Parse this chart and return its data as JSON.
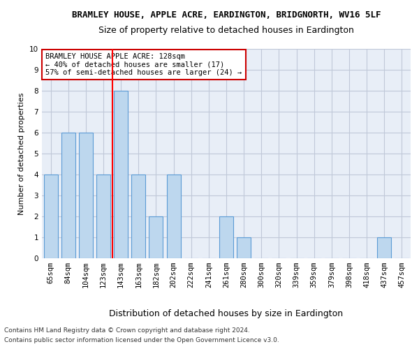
{
  "title": "BRAMLEY HOUSE, APPLE ACRE, EARDINGTON, BRIDGNORTH, WV16 5LF",
  "subtitle": "Size of property relative to detached houses in Eardington",
  "xlabel": "Distribution of detached houses by size in Eardington",
  "ylabel": "Number of detached properties",
  "bar_labels": [
    "65sqm",
    "84sqm",
    "104sqm",
    "123sqm",
    "143sqm",
    "163sqm",
    "182sqm",
    "202sqm",
    "222sqm",
    "241sqm",
    "261sqm",
    "280sqm",
    "300sqm",
    "320sqm",
    "339sqm",
    "359sqm",
    "379sqm",
    "398sqm",
    "418sqm",
    "437sqm",
    "457sqm"
  ],
  "bar_values": [
    4,
    6,
    6,
    4,
    8,
    4,
    2,
    4,
    0,
    0,
    2,
    1,
    0,
    0,
    0,
    0,
    0,
    0,
    0,
    1,
    0
  ],
  "bar_color": "#bdd7ee",
  "bar_edge_color": "#5b9bd5",
  "bar_width": 0.8,
  "ylim": [
    0,
    10
  ],
  "yticks": [
    0,
    1,
    2,
    3,
    4,
    5,
    6,
    7,
    8,
    9,
    10
  ],
  "red_line_x": 3.5,
  "annotation_box_text": "BRAMLEY HOUSE APPLE ACRE: 128sqm\n← 40% of detached houses are smaller (17)\n57% of semi-detached houses are larger (24) →",
  "annotation_box_color": "#ffffff",
  "annotation_box_edge_color": "#cc0000",
  "footer_line1": "Contains HM Land Registry data © Crown copyright and database right 2024.",
  "footer_line2": "Contains public sector information licensed under the Open Government Licence v3.0.",
  "bg_color": "#ffffff",
  "grid_color": "#c0c8d8",
  "title_fontsize": 9,
  "subtitle_fontsize": 9,
  "xlabel_fontsize": 9,
  "ylabel_fontsize": 8,
  "tick_fontsize": 7.5,
  "annotation_fontsize": 7.5,
  "footer_fontsize": 6.5
}
